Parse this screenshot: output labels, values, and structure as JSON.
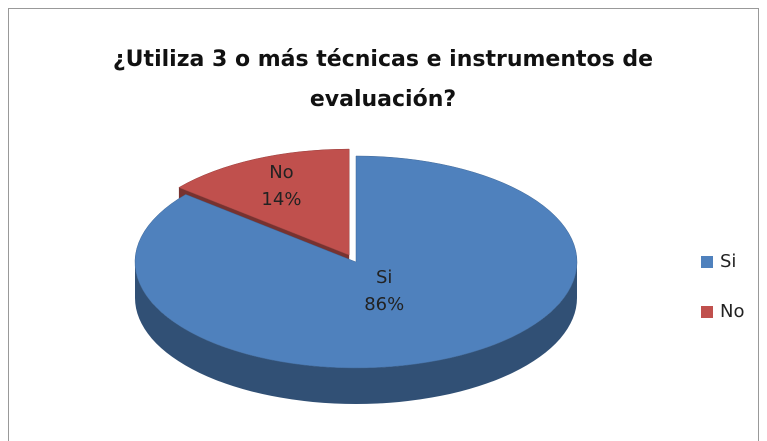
{
  "chart_data": {
    "type": "pie",
    "title": "¿Utiliza 3 o más técnicas e instrumentos de evaluación?",
    "categories": [
      "Si",
      "No"
    ],
    "values": [
      86,
      14
    ],
    "value_labels": [
      "86%",
      "14%"
    ],
    "colors": [
      "#4f81bd",
      "#c0504d"
    ],
    "exploded": [
      false,
      true
    ],
    "legend": "right"
  }
}
